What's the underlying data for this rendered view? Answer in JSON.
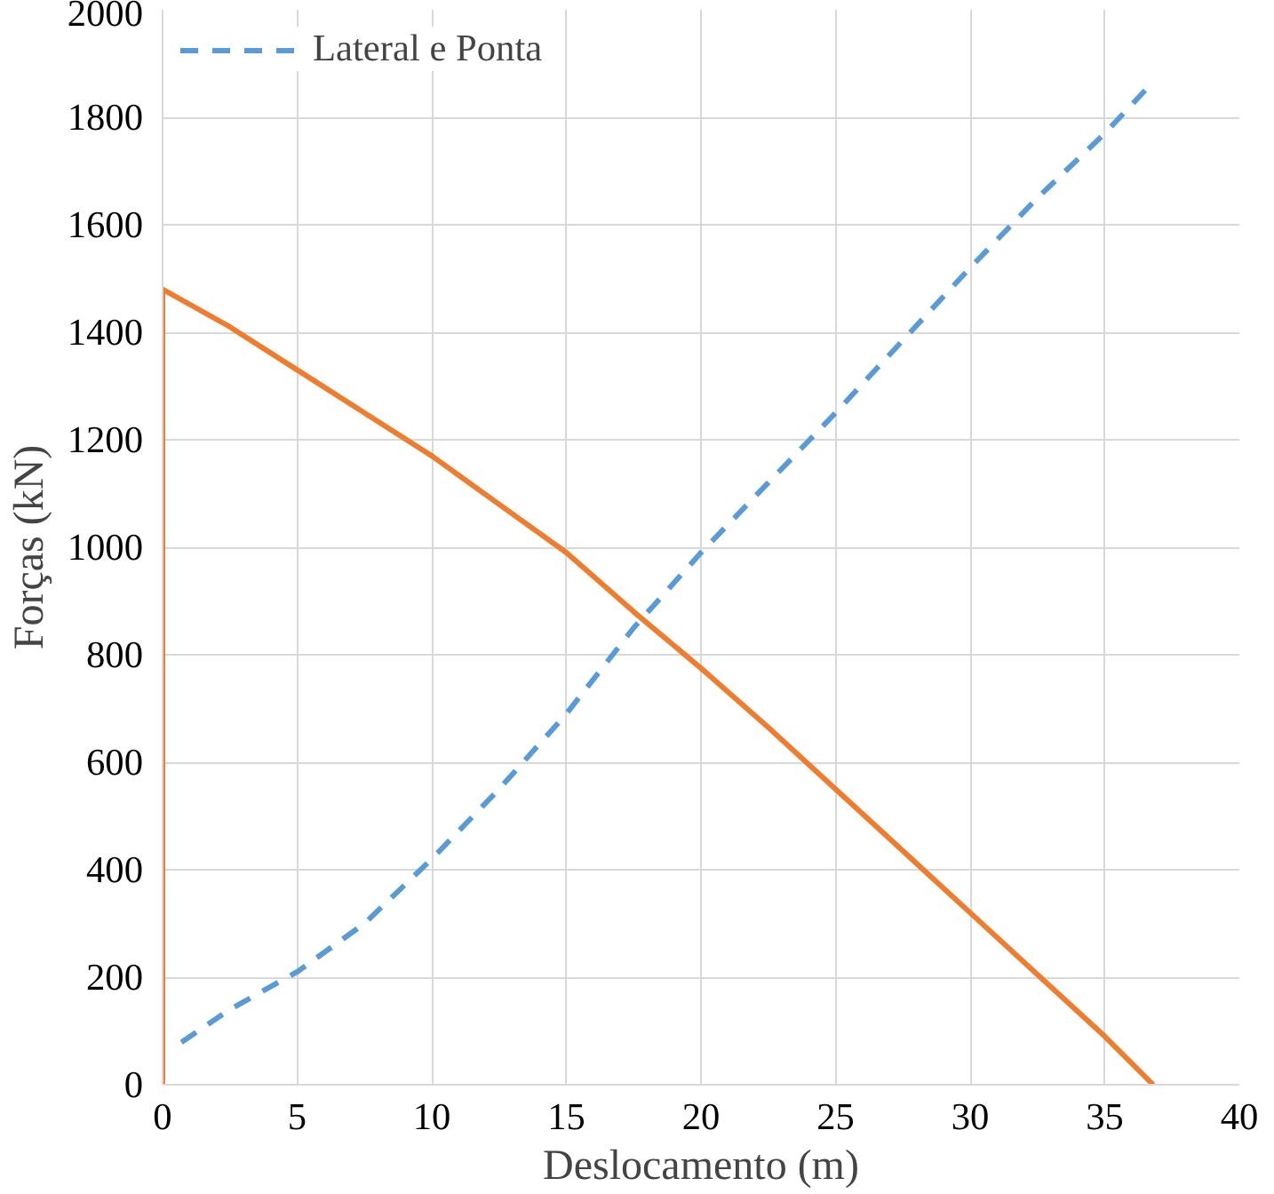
{
  "chart_data": {
    "type": "line",
    "xlabel": "Deslocamento (m)",
    "ylabel": "Forças (kN)",
    "xlim": [
      0,
      40
    ],
    "xticks": [
      0,
      5,
      10,
      15,
      20,
      25,
      30,
      35,
      40
    ],
    "ylim": [
      0,
      2000
    ],
    "yticks": [
      0,
      200,
      400,
      600,
      800,
      1000,
      1200,
      1400,
      1600,
      1800,
      2000
    ],
    "grid": true,
    "legend": "top left",
    "series": [
      {
        "name": "Lateral e Ponta",
        "color": "#5b9bd5",
        "line_style": "dashed",
        "x": [
          0.7,
          2.5,
          5,
          7.5,
          10,
          12.5,
          15,
          17.5,
          20,
          22.5,
          25,
          27.5,
          30,
          32.5,
          35,
          36.5
        ],
        "values": [
          79,
          140,
          210,
          300,
          420,
          550,
          690,
          850,
          990,
          1120,
          1250,
          1385,
          1520,
          1650,
          1770,
          1850
        ]
      },
      {
        "color": "#ed7d31",
        "line_style": "solid",
        "x": [
          0,
          0,
          2.5,
          5,
          7.5,
          10,
          12.5,
          15,
          17.5,
          20,
          22.5,
          25,
          27.5,
          30,
          32.5,
          35,
          36.8
        ],
        "values": [
          0,
          1480,
          1410,
          1330,
          1250,
          1170,
          1080,
          990,
          880,
          775,
          665,
          550,
          435,
          320,
          205,
          90,
          0
        ]
      }
    ]
  }
}
